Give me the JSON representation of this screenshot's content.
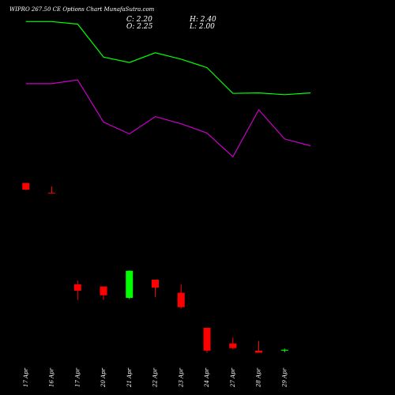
{
  "header": {
    "title": "WIPRO 267.50 CE Options  Chart MunafaSutra.com",
    "c": "C: 2.20",
    "h": "H: 2.40",
    "o": "O: 2.25",
    "l": "L: 2.00"
  },
  "colors": {
    "background": "#000000",
    "up": "#00ff00",
    "down": "#ff0000",
    "upper_line": "#00ff00",
    "lower_line": "#cc00cc",
    "text": "#ffffff"
  },
  "chart_data": {
    "type": "candlestick",
    "categories": [
      "17 Apr",
      "16 Apr",
      "17 Apr",
      "20 Apr",
      "21 Apr",
      "22 Apr",
      "23 Apr",
      "24 Apr",
      "27 Apr",
      "28 Apr",
      "29 Apr"
    ],
    "candles": [
      {
        "o": 11.2,
        "h": 11.2,
        "l": 9.5,
        "c": 9.6
      },
      {
        "o": 8.9,
        "h": 10.4,
        "l": 8.8,
        "c": 8.9
      },
      {
        "o": -12.8,
        "h": -11.9,
        "l": -16.5,
        "c": -14.3
      },
      {
        "o": -13.3,
        "h": -13.3,
        "l": -16.5,
        "c": -15.4
      },
      {
        "o": -16.0,
        "h": -9.5,
        "l": -16.3,
        "c": -9.6
      },
      {
        "o": -11.7,
        "h": -11.7,
        "l": -15.8,
        "c": -13.6
      },
      {
        "o": -14.8,
        "h": -12.8,
        "l": -18.5,
        "c": -18.2
      },
      {
        "o": -23.1,
        "h": -23.1,
        "l": -29.0,
        "c": -28.5
      },
      {
        "o": -26.8,
        "h": -25.4,
        "l": -28.2,
        "c": -27.9
      },
      {
        "o": -28.5,
        "h": -26.2,
        "l": -28.6,
        "c": -29.0
      },
      {
        "o": -28.5,
        "h": -28.0,
        "l": -28.9,
        "c": -28.3
      }
    ],
    "upper_line": [
      {
        "x": 0,
        "y": 49.4
      },
      {
        "x": 1,
        "y": 49.4
      },
      {
        "x": 2,
        "y": 48.8
      },
      {
        "x": 3,
        "y": 41.0
      },
      {
        "x": 4,
        "y": 39.7
      },
      {
        "x": 5,
        "y": 42.0
      },
      {
        "x": 6,
        "y": 40.5
      },
      {
        "x": 7,
        "y": 38.5
      },
      {
        "x": 8,
        "y": 32.4
      },
      {
        "x": 9,
        "y": 32.5
      },
      {
        "x": 10,
        "y": 32.1
      },
      {
        "x": 11,
        "y": 32.5
      }
    ],
    "lower_line": [
      {
        "x": 0,
        "y": 34.7
      },
      {
        "x": 1,
        "y": 34.7
      },
      {
        "x": 2,
        "y": 35.6
      },
      {
        "x": 3,
        "y": 25.6
      },
      {
        "x": 4,
        "y": 22.8
      },
      {
        "x": 5,
        "y": 26.9
      },
      {
        "x": 6,
        "y": 25.2
      },
      {
        "x": 7,
        "y": 23.0
      },
      {
        "x": 8,
        "y": 17.4
      },
      {
        "x": 9,
        "y": 28.5
      },
      {
        "x": 10,
        "y": 21.6
      },
      {
        "x": 11,
        "y": 20.0
      }
    ],
    "xlim": [
      -1,
      11
    ],
    "ylim": [
      -39,
      54.5
    ],
    "grid": false,
    "legend": "none"
  }
}
